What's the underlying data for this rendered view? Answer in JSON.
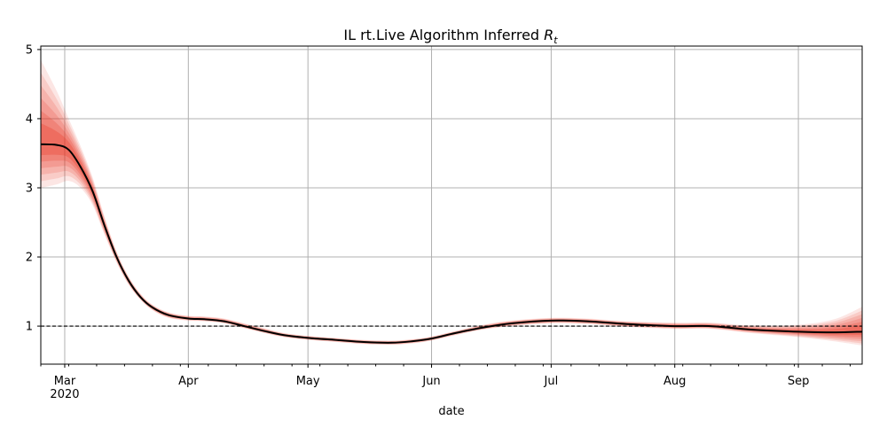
{
  "chart_data": {
    "type": "line",
    "title": "IL rt.Live Algorithm Inferred ",
    "title_symbol": "R",
    "title_subscript": "t",
    "xlabel": "date",
    "ylabel": "",
    "x_start": "2020-02-24",
    "x_end": "2020-09-17",
    "ylim": [
      0.45,
      5.05
    ],
    "yticks": [
      1,
      2,
      3,
      4,
      5
    ],
    "xticks": [
      {
        "date": "2020-03-01",
        "label": "Mar",
        "sublabel": "2020"
      },
      {
        "date": "2020-04-01",
        "label": "Apr",
        "sublabel": ""
      },
      {
        "date": "2020-05-01",
        "label": "May",
        "sublabel": ""
      },
      {
        "date": "2020-06-01",
        "label": "Jun",
        "sublabel": ""
      },
      {
        "date": "2020-07-01",
        "label": "Jul",
        "sublabel": ""
      },
      {
        "date": "2020-08-01",
        "label": "Aug",
        "sublabel": ""
      },
      {
        "date": "2020-09-01",
        "label": "Sep",
        "sublabel": ""
      }
    ],
    "grid": true,
    "reference_line": {
      "y": 1,
      "style": "dashed",
      "color": "#000000"
    },
    "line_color": "#000000",
    "band_color": "#e8311f",
    "series": [
      {
        "values": [
          {
            "x": "2020-02-24",
            "y": 3.63,
            "low": 3.0,
            "high": 4.85
          },
          {
            "x": "2020-02-28",
            "y": 3.62,
            "low": 3.05,
            "high": 4.4
          },
          {
            "x": "2020-03-02",
            "y": 3.55,
            "low": 3.1,
            "high": 4.0
          },
          {
            "x": "2020-03-05",
            "y": 3.3,
            "low": 3.0,
            "high": 3.6
          },
          {
            "x": "2020-03-08",
            "y": 2.95,
            "low": 2.75,
            "high": 3.15
          },
          {
            "x": "2020-03-11",
            "y": 2.45,
            "low": 2.32,
            "high": 2.58
          },
          {
            "x": "2020-03-14",
            "y": 2.0,
            "low": 1.92,
            "high": 2.08
          },
          {
            "x": "2020-03-17",
            "y": 1.66,
            "low": 1.6,
            "high": 1.72
          },
          {
            "x": "2020-03-20",
            "y": 1.42,
            "low": 1.38,
            "high": 1.47
          },
          {
            "x": "2020-03-23",
            "y": 1.27,
            "low": 1.23,
            "high": 1.31
          },
          {
            "x": "2020-03-27",
            "y": 1.16,
            "low": 1.12,
            "high": 1.2
          },
          {
            "x": "2020-04-01",
            "y": 1.11,
            "low": 1.08,
            "high": 1.15
          },
          {
            "x": "2020-04-05",
            "y": 1.1,
            "low": 1.07,
            "high": 1.14
          },
          {
            "x": "2020-04-10",
            "y": 1.07,
            "low": 1.04,
            "high": 1.11
          },
          {
            "x": "2020-04-15",
            "y": 1.0,
            "low": 0.97,
            "high": 1.04
          },
          {
            "x": "2020-04-20",
            "y": 0.93,
            "low": 0.9,
            "high": 0.97
          },
          {
            "x": "2020-04-25",
            "y": 0.87,
            "low": 0.84,
            "high": 0.9
          },
          {
            "x": "2020-05-01",
            "y": 0.83,
            "low": 0.8,
            "high": 0.86
          },
          {
            "x": "2020-05-08",
            "y": 0.8,
            "low": 0.77,
            "high": 0.83
          },
          {
            "x": "2020-05-15",
            "y": 0.77,
            "low": 0.74,
            "high": 0.8
          },
          {
            "x": "2020-05-22",
            "y": 0.76,
            "low": 0.73,
            "high": 0.79
          },
          {
            "x": "2020-05-27",
            "y": 0.78,
            "low": 0.75,
            "high": 0.81
          },
          {
            "x": "2020-06-01",
            "y": 0.82,
            "low": 0.79,
            "high": 0.85
          },
          {
            "x": "2020-06-07",
            "y": 0.9,
            "low": 0.87,
            "high": 0.93
          },
          {
            "x": "2020-06-14",
            "y": 0.98,
            "low": 0.95,
            "high": 1.02
          },
          {
            "x": "2020-06-21",
            "y": 1.04,
            "low": 1.0,
            "high": 1.08
          },
          {
            "x": "2020-07-01",
            "y": 1.08,
            "low": 1.04,
            "high": 1.12
          },
          {
            "x": "2020-07-10",
            "y": 1.07,
            "low": 1.03,
            "high": 1.11
          },
          {
            "x": "2020-07-20",
            "y": 1.03,
            "low": 0.99,
            "high": 1.07
          },
          {
            "x": "2020-08-01",
            "y": 1.0,
            "low": 0.96,
            "high": 1.05
          },
          {
            "x": "2020-08-10",
            "y": 1.0,
            "low": 0.96,
            "high": 1.05
          },
          {
            "x": "2020-08-20",
            "y": 0.95,
            "low": 0.9,
            "high": 1.01
          },
          {
            "x": "2020-09-01",
            "y": 0.92,
            "low": 0.84,
            "high": 1.02
          },
          {
            "x": "2020-09-10",
            "y": 0.91,
            "low": 0.78,
            "high": 1.1
          },
          {
            "x": "2020-09-17",
            "y": 0.92,
            "low": 0.72,
            "high": 1.28
          }
        ]
      }
    ]
  }
}
